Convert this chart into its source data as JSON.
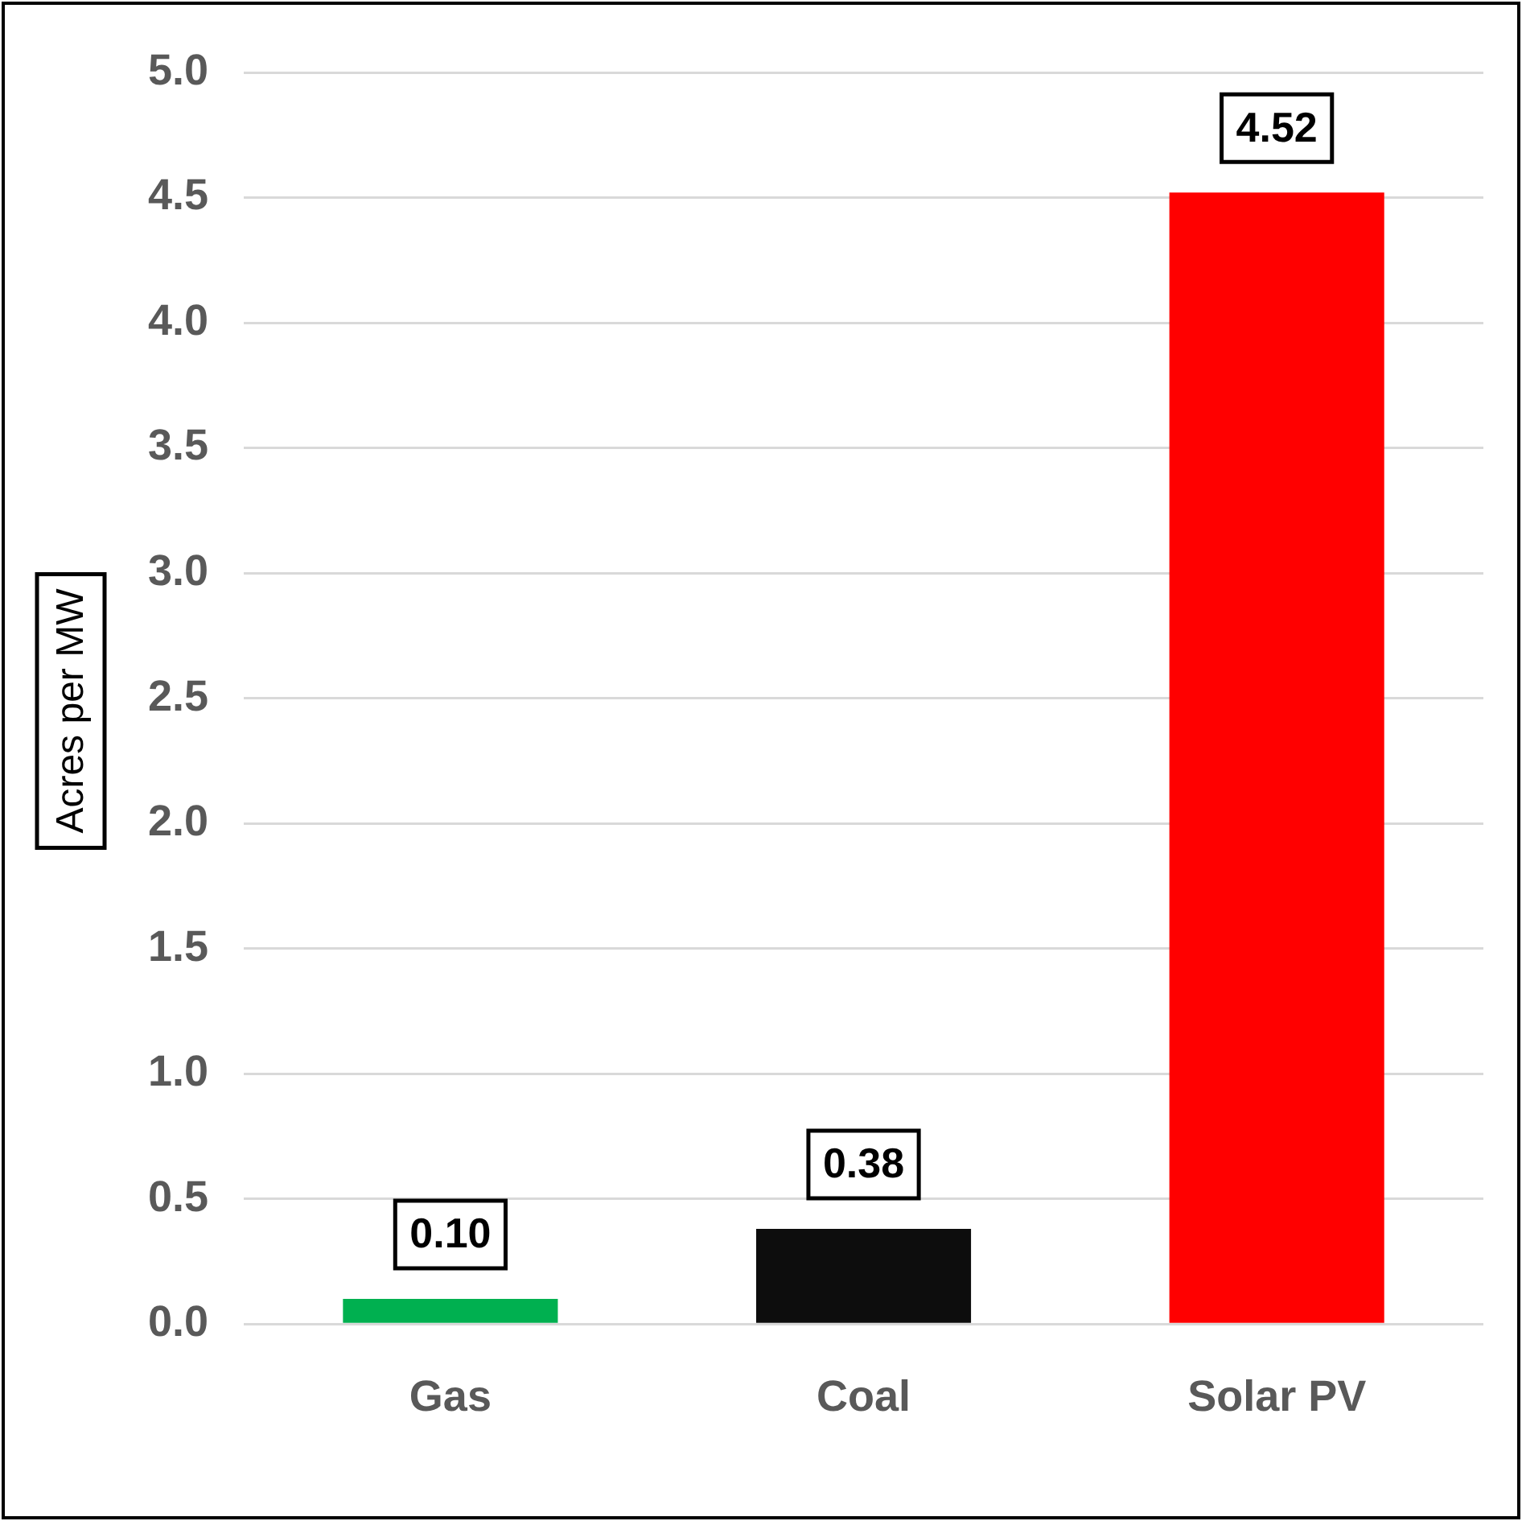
{
  "chart_data": {
    "type": "bar",
    "ylabel": "Acres per MW",
    "categories": [
      "Gas",
      "Coal",
      "Solar PV"
    ],
    "values": [
      0.1,
      0.38,
      4.52
    ],
    "colors": [
      "#00b050",
      "#0d0d0d",
      "#ff0000"
    ],
    "value_labels": [
      "0.10",
      "0.38",
      "4.52"
    ],
    "ylim": [
      0,
      5
    ],
    "yticks": [
      {
        "value": 0,
        "label": "0.0"
      },
      {
        "value": 0.5,
        "label": "0.5"
      },
      {
        "value": 1,
        "label": "1.0"
      },
      {
        "value": 1.5,
        "label": "1.5"
      },
      {
        "value": 2,
        "label": "2.0"
      },
      {
        "value": 2.5,
        "label": "2.5"
      },
      {
        "value": 3,
        "label": "3.0"
      },
      {
        "value": 3.5,
        "label": "3.5"
      },
      {
        "value": 4,
        "label": "4.0"
      },
      {
        "value": 4.5,
        "label": "4.5"
      },
      {
        "value": 5,
        "label": "5.0"
      }
    ],
    "grid": "y",
    "legend": false
  }
}
